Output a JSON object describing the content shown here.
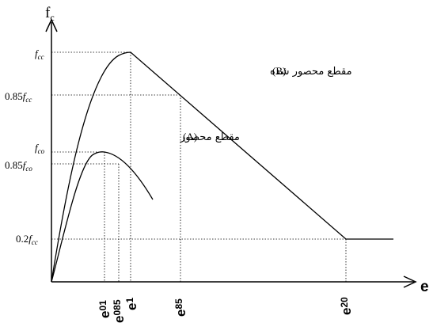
{
  "axes": {
    "y_label": "f",
    "y_label_sub": "c",
    "x_label": "e"
  },
  "y_ticks": {
    "fcc": {
      "main": "f",
      "sub": "cc"
    },
    "fcc085": {
      "factor": "0.85",
      "main": "f",
      "sub": "cc"
    },
    "fco": {
      "main": "f",
      "sub": "co"
    },
    "fco085": {
      "factor": "0.85",
      "main": "f",
      "sub": "co"
    },
    "fcc02": {
      "factor": "0.2",
      "main": "f",
      "sub": "cc"
    }
  },
  "x_ticks": {
    "e01": {
      "main": "e",
      "sub": "01"
    },
    "e085": {
      "main": "e",
      "sub": "085"
    },
    "e1": {
      "main": "e",
      "sub": "1"
    },
    "e85": {
      "main": "e",
      "sub": "85"
    },
    "e20": {
      "main": "e",
      "sub": "20"
    }
  },
  "curves": {
    "confined": {
      "tag": "(B)",
      "text": "مقطع محصور شده"
    },
    "unconfined": {
      "tag": "(A)",
      "text": "مقطع محصور"
    }
  }
}
